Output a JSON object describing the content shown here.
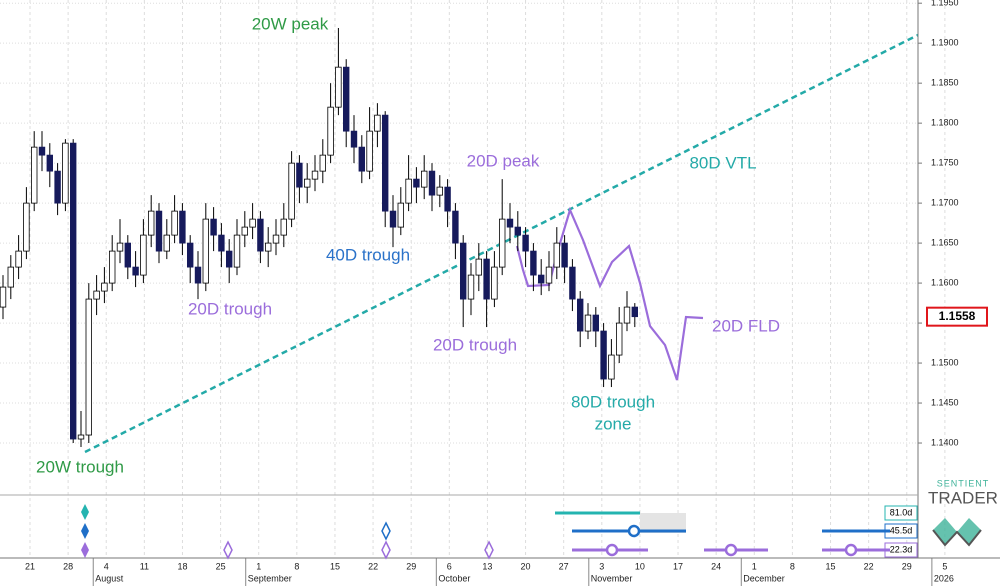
{
  "chart_data": {
    "type": "candlestick",
    "open": [
      1.157,
      1.1595,
      1.162,
      1.164,
      1.17,
      1.177,
      1.176,
      1.174,
      1.17,
      1.1775,
      1.1405,
      1.141,
      1.158,
      1.159,
      1.16,
      1.164,
      1.165,
      1.162,
      1.161,
      1.166,
      1.169,
      1.164,
      1.166,
      1.169,
      1.165,
      1.162,
      1.16,
      1.168,
      1.166,
      1.164,
      1.162,
      1.166,
      1.167,
      1.168,
      1.164,
      1.165,
      1.166,
      1.168,
      1.175,
      1.172,
      1.173,
      1.174,
      1.176,
      1.182,
      1.187,
      1.179,
      1.177,
      1.174,
      1.179,
      1.181,
      1.169,
      1.167,
      1.17,
      1.173,
      1.172,
      1.174,
      1.171,
      1.172,
      1.169,
      1.165,
      1.158,
      1.161,
      1.163,
      1.158,
      1.162,
      1.168,
      1.167,
      1.166,
      1.164,
      1.161,
      1.16,
      1.162,
      1.165,
      1.162,
      1.158,
      1.154,
      1.156,
      1.154,
      1.148,
      1.151,
      1.155,
      1.157
    ],
    "high": [
      1.161,
      1.1635,
      1.166,
      1.172,
      1.179,
      1.179,
      1.1775,
      1.175,
      1.178,
      1.178,
      1.144,
      1.16,
      1.161,
      1.162,
      1.166,
      1.168,
      1.166,
      1.164,
      1.168,
      1.171,
      1.17,
      1.168,
      1.171,
      1.17,
      1.166,
      1.164,
      1.17,
      1.1695,
      1.1675,
      1.1655,
      1.168,
      1.169,
      1.17,
      1.169,
      1.167,
      1.168,
      1.17,
      1.1765,
      1.176,
      1.175,
      1.176,
      1.178,
      1.185,
      1.1919,
      1.188,
      1.181,
      1.1785,
      1.182,
      1.1825,
      1.1815,
      1.171,
      1.172,
      1.176,
      1.1745,
      1.176,
      1.175,
      1.1735,
      1.173,
      1.17,
      1.166,
      1.1625,
      1.165,
      1.164,
      1.164,
      1.173,
      1.17,
      1.169,
      1.167,
      1.165,
      1.163,
      1.164,
      1.167,
      1.166,
      1.163,
      1.159,
      1.1575,
      1.157,
      1.155,
      1.153,
      1.157,
      1.159,
      1.1575
    ],
    "low": [
      1.1555,
      1.158,
      1.1605,
      1.163,
      1.169,
      1.174,
      1.172,
      1.1685,
      1.169,
      1.14,
      1.1395,
      1.14,
      1.156,
      1.1575,
      1.159,
      1.1625,
      1.1605,
      1.1595,
      1.16,
      1.1645,
      1.1625,
      1.163,
      1.165,
      1.1635,
      1.16,
      1.158,
      1.159,
      1.164,
      1.162,
      1.16,
      1.161,
      1.1645,
      1.1655,
      1.1625,
      1.162,
      1.1635,
      1.1645,
      1.167,
      1.17,
      1.17,
      1.1715,
      1.1725,
      1.175,
      1.181,
      1.177,
      1.175,
      1.1725,
      1.173,
      1.177,
      1.167,
      1.1645,
      1.166,
      1.169,
      1.17,
      1.1705,
      1.169,
      1.1695,
      1.167,
      1.163,
      1.1545,
      1.156,
      1.159,
      1.1545,
      1.157,
      1.161,
      1.165,
      1.164,
      1.162,
      1.159,
      1.1585,
      1.159,
      1.1605,
      1.16,
      1.1565,
      1.152,
      1.153,
      1.152,
      1.147,
      1.147,
      1.15,
      1.154,
      1.1545
    ],
    "close": [
      1.1595,
      1.162,
      1.164,
      1.17,
      1.177,
      1.176,
      1.174,
      1.17,
      1.1775,
      1.1405,
      1.141,
      1.158,
      1.159,
      1.16,
      1.164,
      1.165,
      1.162,
      1.161,
      1.166,
      1.169,
      1.164,
      1.166,
      1.169,
      1.165,
      1.162,
      1.16,
      1.168,
      1.166,
      1.164,
      1.162,
      1.166,
      1.167,
      1.168,
      1.164,
      1.165,
      1.166,
      1.168,
      1.175,
      1.172,
      1.173,
      1.174,
      1.176,
      1.182,
      1.187,
      1.179,
      1.177,
      1.174,
      1.179,
      1.181,
      1.169,
      1.167,
      1.17,
      1.173,
      1.172,
      1.174,
      1.171,
      1.172,
      1.169,
      1.165,
      1.158,
      1.161,
      1.163,
      1.158,
      1.162,
      1.168,
      1.167,
      1.166,
      1.164,
      1.161,
      1.16,
      1.162,
      1.165,
      1.162,
      1.158,
      1.154,
      1.156,
      1.154,
      1.148,
      1.151,
      1.155,
      1.157,
      1.1558
    ],
    "up_color": "#ffffff",
    "down_color": "#161a5c",
    "ylim": [
      1.1335,
      1.1954
    ],
    "yticks": [
      {
        "value": 1.14,
        "label": "1.1400"
      },
      {
        "value": 1.145,
        "label": "1.1450"
      },
      {
        "value": 1.15,
        "label": "1.1500"
      },
      {
        "value": 1.155,
        "label": "1.1550"
      },
      {
        "value": 1.16,
        "label": "1.1600"
      },
      {
        "value": 1.165,
        "label": "1.1650"
      },
      {
        "value": 1.17,
        "label": "1.1700"
      },
      {
        "value": 1.175,
        "label": "1.1750"
      },
      {
        "value": 1.18,
        "label": "1.1800"
      },
      {
        "value": 1.185,
        "label": "1.1850"
      },
      {
        "value": 1.19,
        "label": "1.1900"
      },
      {
        "value": 1.195,
        "label": "1.1950"
      }
    ],
    "grid": true,
    "x_week_labels": [
      "21",
      "28",
      "4",
      "11",
      "18",
      "25",
      "1",
      "8",
      "15",
      "22",
      "29",
      "6",
      "13",
      "20",
      "27",
      "3",
      "10",
      "17",
      "24",
      "1",
      "8",
      "15",
      "22",
      "29",
      "5"
    ],
    "x_month_labels": [
      null,
      null,
      "August",
      null,
      null,
      null,
      "September",
      null,
      null,
      null,
      null,
      "October",
      null,
      null,
      null,
      "November",
      null,
      null,
      null,
      "December",
      null,
      null,
      null,
      null,
      "2026"
    ],
    "last_price": 1.1558,
    "last_price_color": "#e0161b",
    "annotations": [
      {
        "text": "20W peak",
        "color": "#2f9a46"
      },
      {
        "text": "20D peak",
        "color": "#9b6ddb"
      },
      {
        "text": "80D VTL",
        "color": "#24aaa8"
      },
      {
        "text": "40D trough",
        "color": "#2a72c9"
      },
      {
        "text": "20D trough",
        "color": "#9b6ddb"
      },
      {
        "text": "20D trough",
        "color": "#9b6ddb"
      },
      {
        "text": "80D trough",
        "color": "#24aaa8"
      },
      {
        "text": "zone",
        "color": "#24aaa8"
      },
      {
        "text": "20D FLD",
        "color": "#9b6ddb"
      },
      {
        "text": "20W trough",
        "color": "#2f9a46"
      }
    ],
    "cycles": [
      {
        "label": "81.0d",
        "color": "#24b4b0"
      },
      {
        "label": "45.5d",
        "color": "#1f6fc8"
      },
      {
        "label": "22.3d",
        "color": "#9b6ddb"
      }
    ],
    "brand": [
      "SENTIENT",
      "TRADER"
    ]
  }
}
